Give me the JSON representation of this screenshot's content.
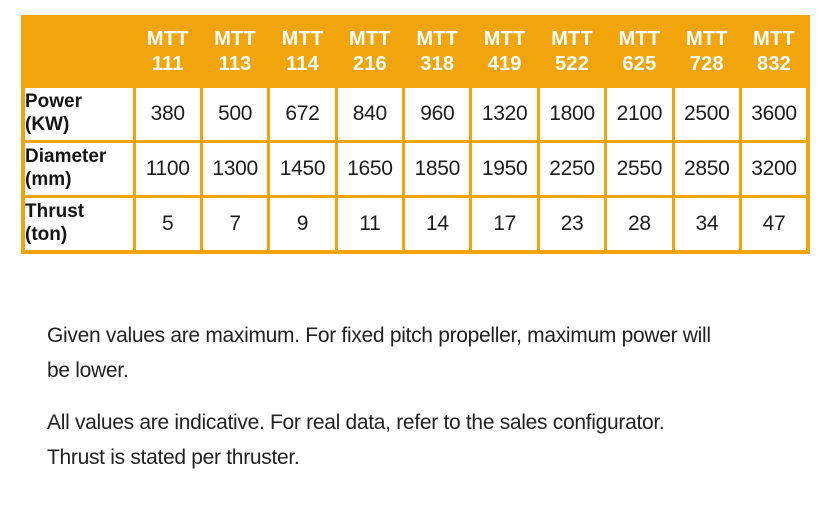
{
  "table": {
    "corner_label": "",
    "column_headers": [
      "MTT\n111",
      "MTT\n113",
      "MTT\n114",
      "MTT\n216",
      "MTT\n318",
      "MTT\n419",
      "MTT\n522",
      "MTT\n625",
      "MTT\n728",
      "MTT\n832"
    ],
    "rows": [
      {
        "label": "Power\n(KW)",
        "values": [
          "380",
          "500",
          "672",
          "840",
          "960",
          "1320",
          "1800",
          "2100",
          "2500",
          "3600"
        ]
      },
      {
        "label": "Diameter\n(mm)",
        "values": [
          "1100",
          "1300",
          "1450",
          "1650",
          "1850",
          "1950",
          "2250",
          "2550",
          "2850",
          "3200"
        ]
      },
      {
        "label": "Thrust\n(ton)",
        "values": [
          "5",
          "7",
          "9",
          "11",
          "14",
          "17",
          "23",
          "28",
          "34",
          "47"
        ]
      }
    ]
  },
  "notes": [
    {
      "text": "Given values are maximum. For fixed pitch propeller, maximum power will\nbe lower."
    },
    {
      "text": "All values are indicative. For real data, refer to the sales configurator.\nThrust is stated per thruster."
    }
  ],
  "colors": {
    "accent_orange": "#F2A50A",
    "header_text": "#FFFFFF",
    "body_text": "#1D1D1D"
  }
}
